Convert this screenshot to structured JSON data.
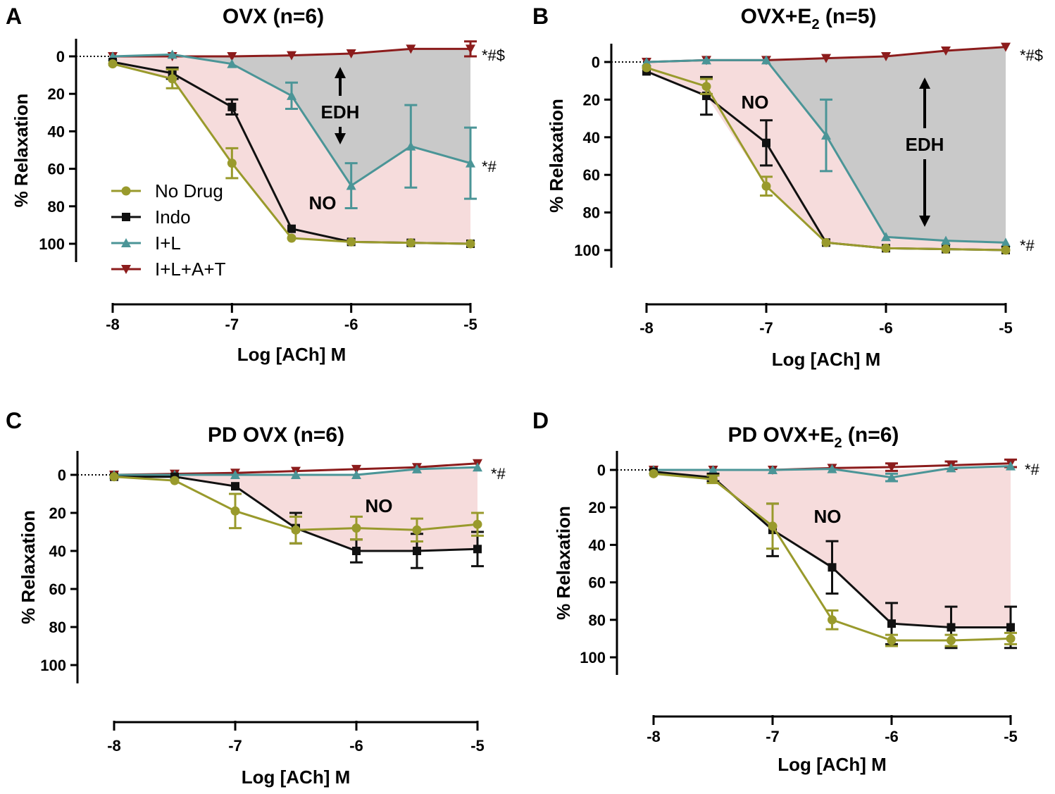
{
  "chart_data": [
    {
      "type": "line",
      "panel_label": "A",
      "title": {
        "main": "OVX (n=6)",
        "sub": "",
        "rest": ""
      },
      "xlabel": "Log [ACh] M",
      "ylabel": "% Relaxation",
      "x": [
        -8,
        -7.5,
        -7,
        -6.5,
        -6,
        -5.5,
        -5
      ],
      "xticks": [
        "-8",
        "-7",
        "-6",
        "-5"
      ],
      "yticks": [
        "0",
        "20",
        "40",
        "60",
        "80",
        "100"
      ],
      "ylim": [
        -10,
        110
      ],
      "y_inverted": true,
      "series": [
        {
          "name": "No Drug",
          "values": [
            4,
            12,
            57,
            97,
            99,
            99.5,
            100
          ],
          "errors": [
            1,
            5,
            8,
            1,
            1,
            1,
            1
          ]
        },
        {
          "name": "Indo",
          "values": [
            3,
            9,
            27,
            92,
            99,
            99.5,
            100
          ],
          "errors": [
            1,
            3,
            4,
            1,
            1,
            1,
            1
          ]
        },
        {
          "name": "I+L",
          "values": [
            0,
            -1,
            4,
            21,
            69,
            48,
            57
          ],
          "errors": [
            1,
            1,
            1,
            7,
            12,
            22,
            19
          ]
        },
        {
          "name": "I+L+A+T",
          "values": [
            0,
            0,
            0,
            -0.5,
            -1.5,
            -4,
            -4
          ],
          "errors": [
            1,
            0,
            0,
            0,
            0,
            0,
            4
          ]
        }
      ],
      "annotations": {
        "top_sig": "*#$",
        "mid_sig": "*#",
        "edh": "EDH",
        "no": "NO"
      },
      "legend": "left"
    },
    {
      "type": "line",
      "panel_label": "B",
      "title": {
        "main": "OVX+E",
        "sub": "2",
        "rest": " (n=5)"
      },
      "xlabel": "Log [ACh] M",
      "ylabel": "% Relaxation",
      "x": [
        -8,
        -7.5,
        -7,
        -6.5,
        -6,
        -5.5,
        -5
      ],
      "xticks": [
        "-8",
        "-7",
        "-6",
        "-5"
      ],
      "yticks": [
        "0",
        "20",
        "40",
        "60",
        "80",
        "100"
      ],
      "ylim": [
        -10,
        110
      ],
      "y_inverted": true,
      "series": [
        {
          "name": "No Drug",
          "values": [
            3,
            13,
            66,
            96,
            99,
            99.5,
            100
          ],
          "errors": [
            1,
            4,
            5,
            1,
            1,
            1,
            1
          ]
        },
        {
          "name": "Indo",
          "values": [
            5,
            18,
            43,
            96,
            99,
            99.5,
            100
          ],
          "errors": [
            1,
            10,
            12,
            1,
            1,
            1,
            1
          ]
        },
        {
          "name": "I+L",
          "values": [
            0,
            -1,
            -1,
            39,
            93,
            95,
            96
          ],
          "errors": [
            1,
            1,
            1,
            19,
            1,
            1,
            1
          ]
        },
        {
          "name": "I+L+A+T",
          "values": [
            0,
            -1,
            -1,
            -2,
            -3,
            -6,
            -8
          ],
          "errors": [
            0,
            0,
            0,
            0,
            0,
            0,
            0
          ]
        }
      ],
      "annotations": {
        "top_sig": "*#$",
        "mid_sig": "*#",
        "edh": "EDH",
        "no": "NO"
      }
    },
    {
      "type": "line",
      "panel_label": "C",
      "title": {
        "main": "PD OVX (n=6)",
        "sub": "",
        "rest": ""
      },
      "xlabel": "Log [ACh] M",
      "ylabel": "% Relaxation",
      "x": [
        -8,
        -7.5,
        -7,
        -6.5,
        -6,
        -5.5,
        -5
      ],
      "xticks": [
        "-8",
        "-7",
        "-6",
        "-5"
      ],
      "yticks": [
        "0",
        "20",
        "40",
        "60",
        "80",
        "100"
      ],
      "ylim": [
        -10,
        110
      ],
      "y_inverted": true,
      "series": [
        {
          "name": "No Drug",
          "values": [
            1,
            3,
            19,
            29,
            28,
            29,
            26
          ],
          "errors": [
            1,
            1,
            9,
            7,
            6,
            6,
            6
          ]
        },
        {
          "name": "Indo",
          "values": [
            1,
            1,
            6,
            28,
            40,
            40,
            39
          ],
          "errors": [
            1,
            1,
            1,
            8,
            6,
            9,
            9
          ]
        },
        {
          "name": "I+L",
          "values": [
            0,
            0,
            0,
            0,
            0,
            -3,
            -4
          ],
          "errors": [
            0,
            0,
            0,
            0,
            0,
            1,
            1
          ]
        },
        {
          "name": "I+L+A+T",
          "values": [
            0,
            -0.5,
            -1,
            -2,
            -3,
            -4,
            -6
          ],
          "errors": [
            0,
            0,
            0,
            0,
            0,
            0,
            0
          ]
        }
      ],
      "annotations": {
        "top_sig": "*#",
        "no": "NO"
      }
    },
    {
      "type": "line",
      "panel_label": "D",
      "title": {
        "main": "PD OVX+E",
        "sub": "2",
        "rest": " (n=6)"
      },
      "xlabel": "Log [ACh] M",
      "ylabel": "% Relaxation",
      "x": [
        -8,
        -7.5,
        -7,
        -6.5,
        -6,
        -5.5,
        -5
      ],
      "xticks": [
        "-8",
        "-7",
        "-6",
        "-5"
      ],
      "yticks": [
        "0",
        "20",
        "40",
        "60",
        "80",
        "100"
      ],
      "ylim": [
        -10,
        110
      ],
      "y_inverted": true,
      "series": [
        {
          "name": "No Drug",
          "values": [
            2,
            5,
            30,
            80,
            91,
            91,
            90
          ],
          "errors": [
            1,
            2,
            12,
            5,
            3,
            3,
            3
          ]
        },
        {
          "name": "Indo",
          "values": [
            1,
            4,
            32,
            52,
            82,
            84,
            84
          ],
          "errors": [
            1,
            2,
            14,
            14,
            11,
            11,
            11
          ]
        },
        {
          "name": "I+L",
          "values": [
            0,
            0,
            0,
            -0.5,
            4,
            -1,
            -2
          ],
          "errors": [
            0,
            0,
            0,
            0,
            2,
            1,
            1
          ]
        },
        {
          "name": "I+L+A+T",
          "values": [
            0,
            0,
            0,
            -1,
            -1.5,
            -2.5,
            -3.5
          ],
          "errors": [
            0,
            0,
            0,
            0,
            2,
            2,
            2
          ]
        }
      ],
      "annotations": {
        "top_sig": "*#",
        "no": "NO"
      }
    }
  ],
  "colors": {
    "No Drug": "#999a2c",
    "Indo": "#111111",
    "I+L": "#4b9597",
    "I+L+A+T": "#8c1c1c",
    "no_region": "#f6dcdc",
    "edh_region": "#c9c9c9"
  },
  "markers": {
    "No Drug": "circle",
    "Indo": "square",
    "I+L": "triangle-up",
    "I+L+A+T": "triangle-down"
  }
}
